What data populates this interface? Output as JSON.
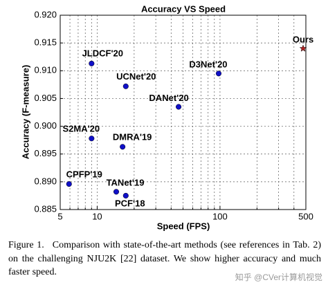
{
  "chart_data": {
    "type": "scatter",
    "title": "Accuracy VS Speed",
    "x_label": "Speed (FPS)",
    "y_label": "Accuracy (F-measure)",
    "labels": [
      "CPFP'19",
      "JLDCF'20",
      "S2MA'20",
      "UCNet'20",
      "DMRA'19",
      "TANet'19",
      "PCF'18",
      "DANet'20",
      "D3Net'20",
      "Ours"
    ],
    "x": [
      5.9,
      9.0,
      9.0,
      17.1,
      16.1,
      14.3,
      17.1,
      46,
      97.5,
      475
    ],
    "values": [
      0.8896,
      0.9113,
      0.8978,
      0.9072,
      0.8963,
      0.8882,
      0.8875,
      0.9035,
      0.9095,
      0.914
    ],
    "markers": [
      "circle",
      "circle",
      "circle",
      "circle",
      "circle",
      "circle",
      "circle",
      "circle",
      "circle",
      "star"
    ],
    "colors": [
      "#1010c8",
      "#1010c8",
      "#1010c8",
      "#1010c8",
      "#1010c8",
      "#1010c8",
      "#1010c8",
      "#1010c8",
      "#1010c8",
      "#b22222"
    ],
    "xscale": "log",
    "xlim": [
      5,
      500
    ],
    "xticks": [
      5,
      10,
      100,
      500
    ],
    "xminorticks": [
      6,
      7,
      8,
      9,
      20,
      30,
      40,
      50,
      60,
      70,
      80,
      90,
      200,
      300,
      400
    ],
    "ylim": [
      0.885,
      0.92
    ],
    "yticks": [
      {
        "value": 0.885,
        "label": "0.885"
      },
      {
        "value": 0.89,
        "label": "0.890"
      },
      {
        "value": 0.895,
        "label": "0.895"
      },
      {
        "value": 0.9,
        "label": "0.900"
      },
      {
        "value": 0.905,
        "label": "0.905"
      },
      {
        "value": 0.91,
        "label": "0.910"
      },
      {
        "value": 0.915,
        "label": "0.915"
      },
      {
        "value": 0.92,
        "label": "0.920"
      }
    ],
    "grid": true
  },
  "caption": {
    "figure": "Figure 1.",
    "text": "Comparison with state-of-the-art methods (see references in Tab. 2) on the challenging NJU2K [22] dataset. We show higher accuracy and much faster speed."
  },
  "watermark": "知乎 @CVer计算机视觉"
}
